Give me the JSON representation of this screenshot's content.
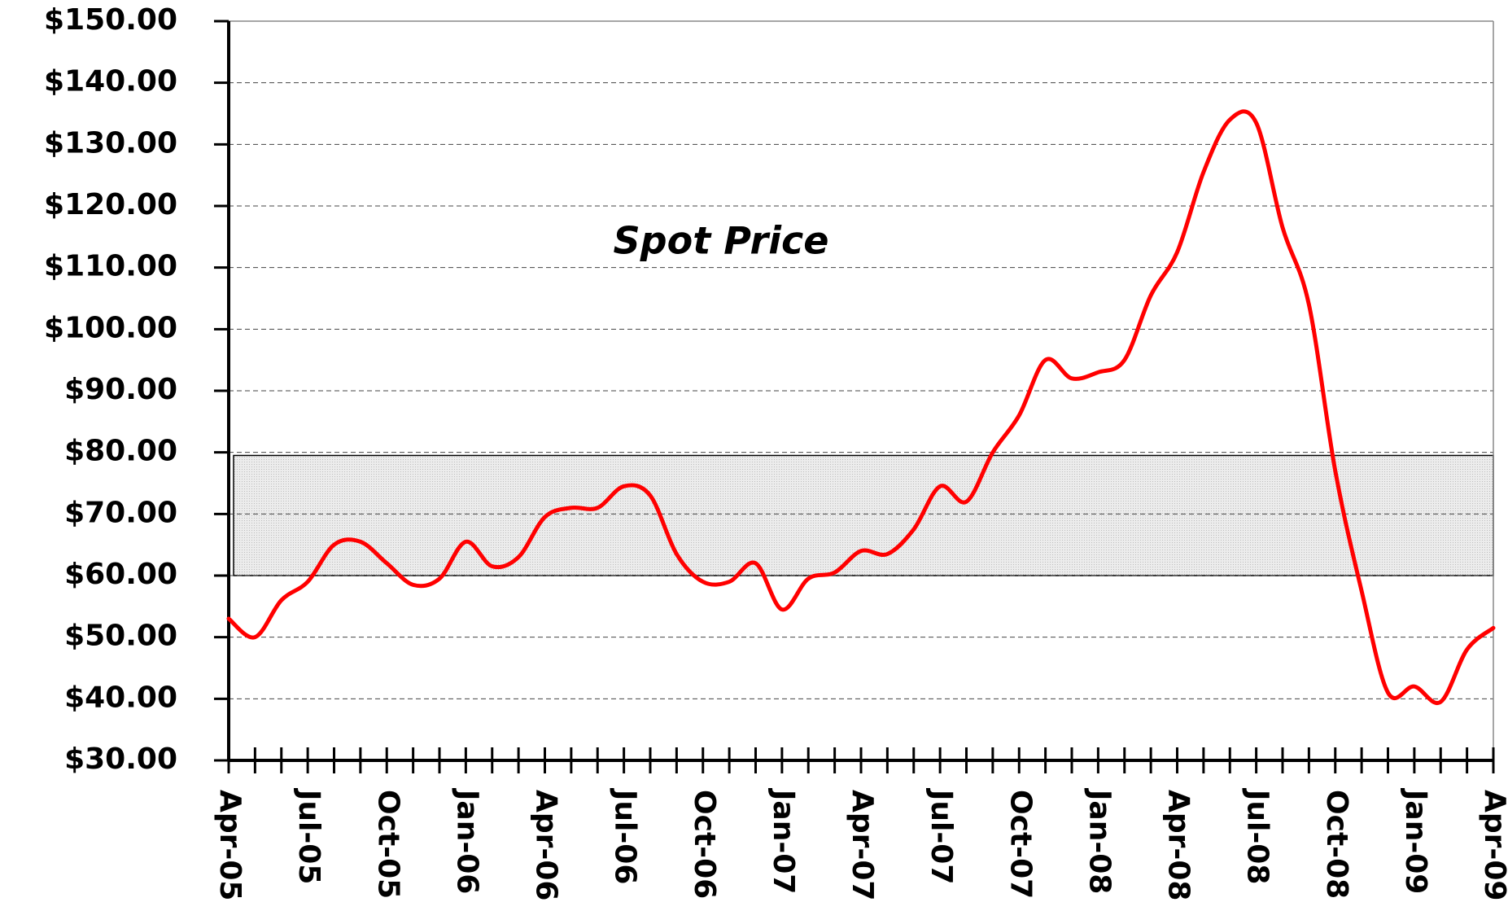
{
  "chart_data": {
    "type": "line",
    "annotation": "Spot Price",
    "categories": [
      "Apr-05",
      null,
      null,
      "Jul-05",
      null,
      null,
      "Oct-05",
      null,
      null,
      "Jan-06",
      null,
      null,
      "Apr-06",
      null,
      null,
      "Jul-06",
      null,
      null,
      "Oct-06",
      null,
      null,
      "Jan-07",
      null,
      null,
      "Apr-07",
      null,
      null,
      "Jul-07",
      null,
      null,
      "Oct-07",
      null,
      null,
      "Jan-08",
      null,
      null,
      "Apr-08",
      null,
      null,
      "Jul-08",
      null,
      null,
      "Oct-08",
      null,
      null,
      "Jan-09",
      null,
      null,
      "Apr-09"
    ],
    "series": [
      {
        "name": "Spot Price",
        "color": "#ff0000",
        "values": [
          53,
          50,
          56,
          59,
          65,
          65.5,
          62,
          58.5,
          59.5,
          65.5,
          61.5,
          63,
          69.5,
          71,
          71,
          74.5,
          73,
          63.5,
          59,
          59,
          62,
          54.5,
          59.5,
          60.5,
          64,
          63.5,
          67.5,
          74.5,
          72,
          80,
          86,
          95,
          92,
          93,
          95,
          105.5,
          112.5,
          125.5,
          134,
          133.5,
          116.5,
          104,
          77,
          57.5,
          41,
          42,
          39.5,
          48,
          51.5
        ]
      }
    ],
    "band": {
      "ymin": 60,
      "ymax": 79.5,
      "color": "#e8e8e8"
    },
    "ylim": [
      30,
      150
    ],
    "yticks": [
      {
        "value": 30,
        "label": "$30.00"
      },
      {
        "value": 40,
        "label": "$40.00"
      },
      {
        "value": 50,
        "label": "$50.00"
      },
      {
        "value": 60,
        "label": "$60.00"
      },
      {
        "value": 70,
        "label": "$70.00"
      },
      {
        "value": 80,
        "label": "$80.00"
      },
      {
        "value": 90,
        "label": "$90.00"
      },
      {
        "value": 100,
        "label": "$100.00"
      },
      {
        "value": 110,
        "label": "$110.00"
      },
      {
        "value": 120,
        "label": "$120.00"
      },
      {
        "value": 130,
        "label": "$130.00"
      },
      {
        "value": 140,
        "label": "$140.00"
      },
      {
        "value": 150,
        "label": "$150.00"
      }
    ],
    "grid": true
  }
}
